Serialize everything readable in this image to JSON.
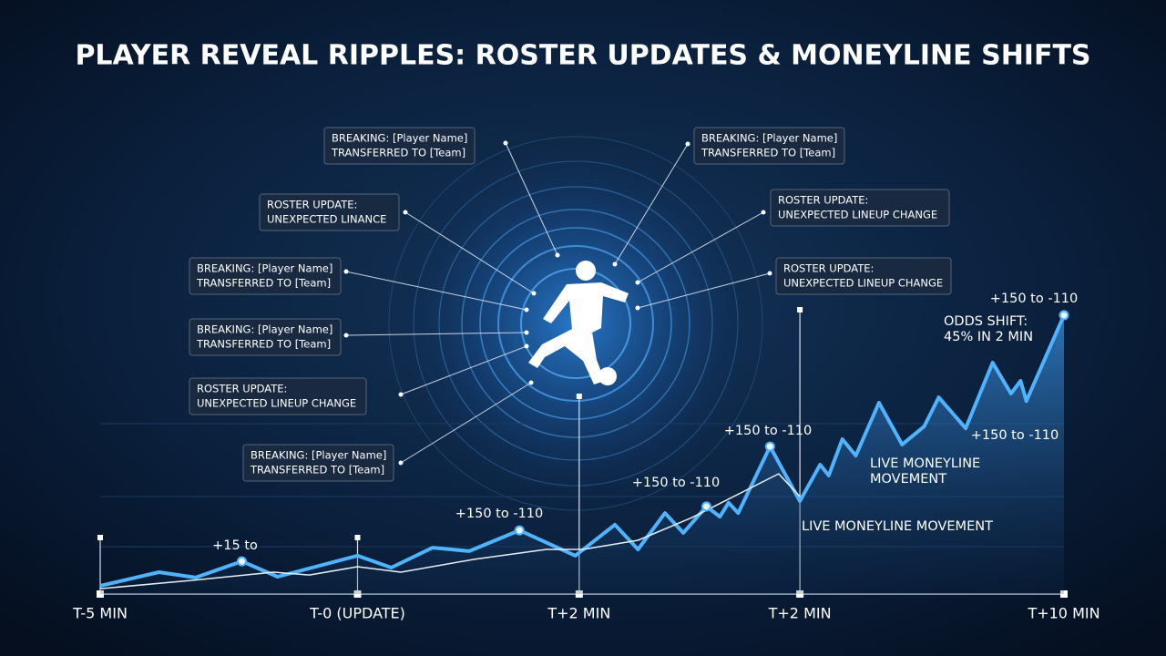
{
  "title": "PLAYER REVEAL RIPPLES: ROSTER UPDATES & MONEYLINE SHIFTS",
  "callouts": [
    {
      "lines": [
        "BREAKING: [Player Name]",
        "TRANSFERRED TO [Team]"
      ]
    },
    {
      "lines": [
        "BREAKING: [Player Name]",
        "TRANSFERRED TO [Team]"
      ]
    },
    {
      "lines": [
        "ROSTER UPDATE:",
        "UNEXPECTED LINANCE"
      ]
    },
    {
      "lines": [
        "ROSTER UPDATE:",
        "UNEXPECTED LINEUP CHANGE"
      ]
    },
    {
      "lines": [
        "BREAKING: [Player Name]",
        "TRANSFERRED TO [Team]"
      ]
    },
    {
      "lines": [
        "ROSTER UPDATE:",
        "UNEXPECTED LINEUP CHANGE"
      ]
    },
    {
      "lines": [
        "BREAKING: [Player Name]",
        "TRANSFERRED TO [Team]"
      ]
    },
    {
      "lines": [
        "ROSTER UPDATE:",
        "UNEXPECTED LINEUP CHANGE"
      ]
    },
    {
      "lines": [
        "BREAKING: [Player Name]",
        "TRANSFERRED TO [Team]"
      ]
    }
  ],
  "chart_data": {
    "type": "line",
    "xlim": [
      0,
      100
    ],
    "ylim": [
      0,
      100
    ],
    "xticks": [
      {
        "value": 0,
        "label": "T-5 MIN"
      },
      {
        "value": 26.7,
        "label": "T-0 (UPDATE)"
      },
      {
        "value": 49.7,
        "label": "T+2 MIN"
      },
      {
        "value": 72.6,
        "label": "T+2 MIN"
      },
      {
        "value": 100,
        "label": "T+10 MIN"
      }
    ],
    "series": [
      {
        "color": "#4fb3ff",
        "x": [
          0,
          6.1,
          9.9,
          14.7,
          18.4,
          26.7,
          30.2,
          34.5,
          38.3,
          43.5,
          49.3,
          53.4,
          55.8,
          58.6,
          60.5,
          62.9,
          64.3,
          65.2,
          66.2,
          69.5,
          72.6,
          74.7,
          75.6,
          77.0,
          78.4,
          80.8,
          83.2,
          85.5,
          87.0,
          89.8,
          92.6,
          94.5,
          95.5,
          96.1,
          100
        ],
        "values": [
          2.9,
          7.7,
          5.8,
          11.5,
          6.1,
          13.5,
          9.3,
          16.3,
          15.1,
          22.4,
          13.5,
          24.4,
          15.7,
          28.5,
          21.5,
          30.8,
          27.2,
          32.1,
          28.5,
          51.9,
          32.7,
          45.5,
          41.7,
          54.5,
          48.7,
          67.3,
          52.6,
          59.0,
          69.2,
          58.3,
          81.4,
          70.5,
          75.0,
          67.9,
          98.1
        ]
      },
      {
        "color": "#e8eef5",
        "x": [
          0,
          9.5,
          18.0,
          21.7,
          26.7,
          31.2,
          38.8,
          46.3,
          50.1,
          55.8,
          61.4,
          70.4,
          72.6
        ],
        "values": [
          1.9,
          4.8,
          7.7,
          6.7,
          9.6,
          7.7,
          12.2,
          15.7,
          15.7,
          18.9,
          26.9,
          42.3,
          34.3
        ]
      }
    ],
    "annotations": [
      "+15 to",
      "+150 to -110",
      "+150 to -110",
      "+150 to -110",
      "+150 to -110",
      "+150 to -110",
      "ODDS SHIFT:",
      "45% IN 2 MIN",
      "LIVE MONEYLINE",
      "MOVEMENT",
      "LIVE MONEYLINE MOVEMENT"
    ]
  }
}
